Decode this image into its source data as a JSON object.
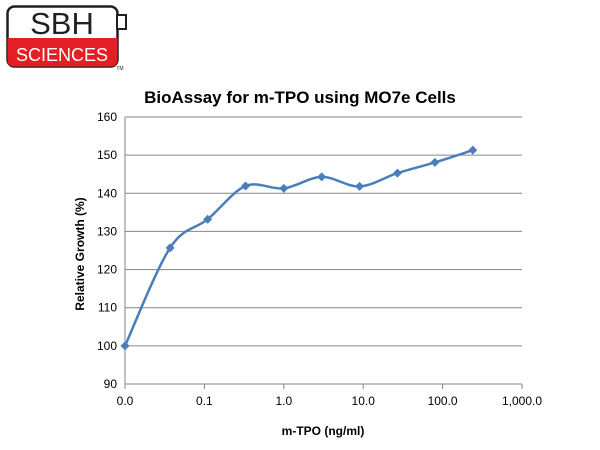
{
  "logo": {
    "line1": "SBH",
    "line2": "SCIENCES",
    "tm": "TM"
  },
  "colors": {
    "series": "#4a7ebb",
    "logo_red": "#e31e24",
    "grid": "#868686"
  },
  "chart_data": {
    "type": "line",
    "title": "BioAssay for m-TPO using MO7e Cells",
    "xlabel": "m-TPO  (ng/ml)",
    "ylabel": "Relative Growth (%)",
    "xscale": "log",
    "xlim": [
      0.01,
      1000
    ],
    "ylim": [
      90,
      160
    ],
    "xticks": [
      "0.0",
      "0.1",
      "1.0",
      "10.0",
      "100.0",
      "1,000.0"
    ],
    "yticks": [
      "90",
      "100",
      "110",
      "120",
      "130",
      "140",
      "150",
      "160"
    ],
    "grid": "horizontal",
    "legend": "none",
    "series": [
      {
        "x": [
          0.01,
          0.037,
          0.11,
          0.33,
          1.0,
          3.0,
          9.0,
          27.0,
          80.0,
          240.0
        ],
        "y": [
          100,
          125.7,
          133.2,
          141.9,
          141.3,
          144.3,
          141.8,
          145.3,
          148.1,
          151.3
        ]
      }
    ]
  }
}
